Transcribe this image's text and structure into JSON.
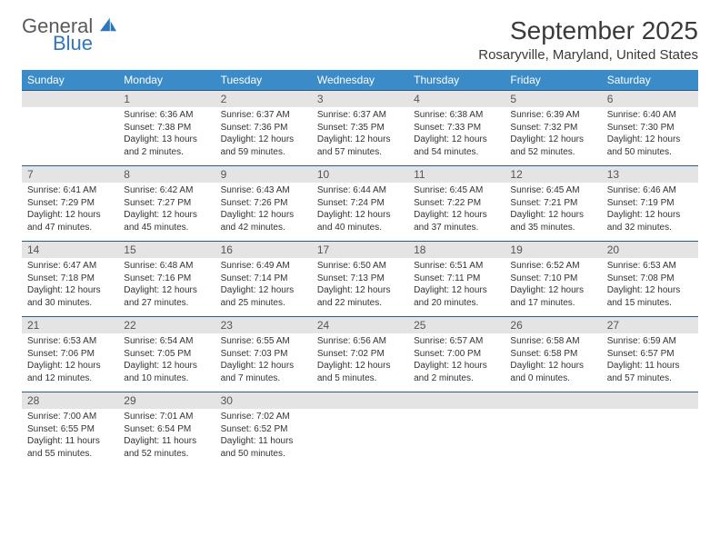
{
  "brand": {
    "word1": "General",
    "word2": "Blue"
  },
  "title": "September 2025",
  "location": "Rosaryville, Maryland, United States",
  "colors": {
    "header_bg": "#3b8bc8",
    "header_text": "#ffffff",
    "daynum_bg": "#e4e4e4",
    "daynum_text": "#555555",
    "row_divider": "#2a5b84",
    "body_text": "#333333",
    "logo_gray": "#5a5a5a",
    "logo_blue": "#2f77bb"
  },
  "fonts": {
    "title_pt": 28,
    "location_pt": 15,
    "dayhead_pt": 12,
    "daynum_pt": 12,
    "body_pt": 10
  },
  "dayNames": [
    "Sunday",
    "Monday",
    "Tuesday",
    "Wednesday",
    "Thursday",
    "Friday",
    "Saturday"
  ],
  "weeks": [
    [
      null,
      {
        "n": "1",
        "sr": "6:36 AM",
        "ss": "7:38 PM",
        "dl": "13 hours and 2 minutes."
      },
      {
        "n": "2",
        "sr": "6:37 AM",
        "ss": "7:36 PM",
        "dl": "12 hours and 59 minutes."
      },
      {
        "n": "3",
        "sr": "6:37 AM",
        "ss": "7:35 PM",
        "dl": "12 hours and 57 minutes."
      },
      {
        "n": "4",
        "sr": "6:38 AM",
        "ss": "7:33 PM",
        "dl": "12 hours and 54 minutes."
      },
      {
        "n": "5",
        "sr": "6:39 AM",
        "ss": "7:32 PM",
        "dl": "12 hours and 52 minutes."
      },
      {
        "n": "6",
        "sr": "6:40 AM",
        "ss": "7:30 PM",
        "dl": "12 hours and 50 minutes."
      }
    ],
    [
      {
        "n": "7",
        "sr": "6:41 AM",
        "ss": "7:29 PM",
        "dl": "12 hours and 47 minutes."
      },
      {
        "n": "8",
        "sr": "6:42 AM",
        "ss": "7:27 PM",
        "dl": "12 hours and 45 minutes."
      },
      {
        "n": "9",
        "sr": "6:43 AM",
        "ss": "7:26 PM",
        "dl": "12 hours and 42 minutes."
      },
      {
        "n": "10",
        "sr": "6:44 AM",
        "ss": "7:24 PM",
        "dl": "12 hours and 40 minutes."
      },
      {
        "n": "11",
        "sr": "6:45 AM",
        "ss": "7:22 PM",
        "dl": "12 hours and 37 minutes."
      },
      {
        "n": "12",
        "sr": "6:45 AM",
        "ss": "7:21 PM",
        "dl": "12 hours and 35 minutes."
      },
      {
        "n": "13",
        "sr": "6:46 AM",
        "ss": "7:19 PM",
        "dl": "12 hours and 32 minutes."
      }
    ],
    [
      {
        "n": "14",
        "sr": "6:47 AM",
        "ss": "7:18 PM",
        "dl": "12 hours and 30 minutes."
      },
      {
        "n": "15",
        "sr": "6:48 AM",
        "ss": "7:16 PM",
        "dl": "12 hours and 27 minutes."
      },
      {
        "n": "16",
        "sr": "6:49 AM",
        "ss": "7:14 PM",
        "dl": "12 hours and 25 minutes."
      },
      {
        "n": "17",
        "sr": "6:50 AM",
        "ss": "7:13 PM",
        "dl": "12 hours and 22 minutes."
      },
      {
        "n": "18",
        "sr": "6:51 AM",
        "ss": "7:11 PM",
        "dl": "12 hours and 20 minutes."
      },
      {
        "n": "19",
        "sr": "6:52 AM",
        "ss": "7:10 PM",
        "dl": "12 hours and 17 minutes."
      },
      {
        "n": "20",
        "sr": "6:53 AM",
        "ss": "7:08 PM",
        "dl": "12 hours and 15 minutes."
      }
    ],
    [
      {
        "n": "21",
        "sr": "6:53 AM",
        "ss": "7:06 PM",
        "dl": "12 hours and 12 minutes."
      },
      {
        "n": "22",
        "sr": "6:54 AM",
        "ss": "7:05 PM",
        "dl": "12 hours and 10 minutes."
      },
      {
        "n": "23",
        "sr": "6:55 AM",
        "ss": "7:03 PM",
        "dl": "12 hours and 7 minutes."
      },
      {
        "n": "24",
        "sr": "6:56 AM",
        "ss": "7:02 PM",
        "dl": "12 hours and 5 minutes."
      },
      {
        "n": "25",
        "sr": "6:57 AM",
        "ss": "7:00 PM",
        "dl": "12 hours and 2 minutes."
      },
      {
        "n": "26",
        "sr": "6:58 AM",
        "ss": "6:58 PM",
        "dl": "12 hours and 0 minutes."
      },
      {
        "n": "27",
        "sr": "6:59 AM",
        "ss": "6:57 PM",
        "dl": "11 hours and 57 minutes."
      }
    ],
    [
      {
        "n": "28",
        "sr": "7:00 AM",
        "ss": "6:55 PM",
        "dl": "11 hours and 55 minutes."
      },
      {
        "n": "29",
        "sr": "7:01 AM",
        "ss": "6:54 PM",
        "dl": "11 hours and 52 minutes."
      },
      {
        "n": "30",
        "sr": "7:02 AM",
        "ss": "6:52 PM",
        "dl": "11 hours and 50 minutes."
      },
      null,
      null,
      null,
      null
    ]
  ],
  "labels": {
    "sunrise": "Sunrise:",
    "sunset": "Sunset:",
    "daylight": "Daylight:"
  }
}
